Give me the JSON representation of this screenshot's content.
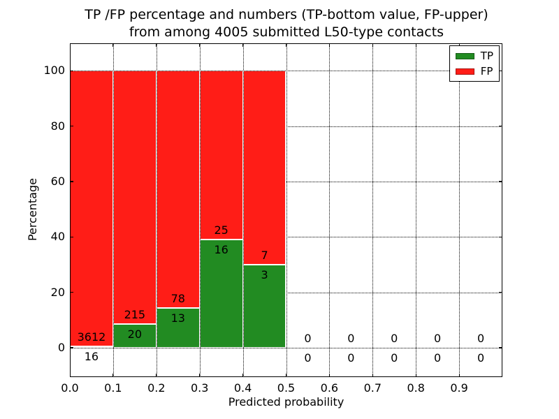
{
  "chart_data": {
    "type": "bar",
    "stacked": true,
    "title_lines": [
      "TP /FP percentage and numbers (TP-bottom value, FP-upper)",
      "from among 4005 submitted L50-type contacts"
    ],
    "xlabel": "Predicted probability",
    "ylabel": "Percentage",
    "total_submitted_contacts": 4005,
    "xlim": [
      0.0,
      1.0
    ],
    "ylim": [
      -10.6,
      109.9
    ],
    "xticks": [
      "0.0",
      "0.1",
      "0.2",
      "0.3",
      "0.4",
      "0.5",
      "0.6",
      "0.7",
      "0.8",
      "0.9"
    ],
    "yticks": [
      "0",
      "20",
      "40",
      "60",
      "80",
      "100"
    ],
    "grid": "dotted",
    "colors": {
      "tp": "#228b22",
      "fp": "#ff1d17",
      "text": "#000000",
      "background": "#ffffff"
    },
    "legend": {
      "position": "upper-right",
      "entries": [
        {
          "label": "TP",
          "color": "#228b22"
        },
        {
          "label": "FP",
          "color": "#ff1d17"
        }
      ]
    },
    "bins": [
      {
        "range": [
          0.0,
          0.1
        ],
        "tp": 16,
        "fp": 3612
      },
      {
        "range": [
          0.1,
          0.2
        ],
        "tp": 20,
        "fp": 215
      },
      {
        "range": [
          0.2,
          0.3
        ],
        "tp": 13,
        "fp": 78
      },
      {
        "range": [
          0.3,
          0.4
        ],
        "tp": 16,
        "fp": 25
      },
      {
        "range": [
          0.4,
          0.5
        ],
        "tp": 3,
        "fp": 7
      },
      {
        "range": [
          0.5,
          0.6
        ],
        "tp": 0,
        "fp": 0
      },
      {
        "range": [
          0.6,
          0.7
        ],
        "tp": 0,
        "fp": 0
      },
      {
        "range": [
          0.7,
          0.8
        ],
        "tp": 0,
        "fp": 0
      },
      {
        "range": [
          0.8,
          0.9
        ],
        "tp": 0,
        "fp": 0
      },
      {
        "range": [
          0.9,
          1.0
        ],
        "tp": 0,
        "fp": 0
      }
    ]
  }
}
